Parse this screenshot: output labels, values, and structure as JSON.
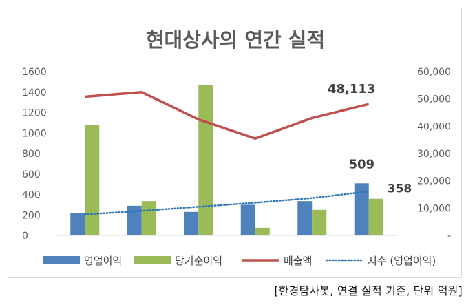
{
  "colors": {
    "operating_profit": "#4f81bd",
    "net_income": "#9bbb59",
    "revenue": "#c0504d",
    "trend": "#2e75b6",
    "title": "#595959",
    "axis_text": "#595959",
    "gridline": "#d9d9d9"
  },
  "chart_data": {
    "type": "bar",
    "title": "현대상사의 연간 실적",
    "categories": [
      "",
      "",
      "",
      "",
      "",
      ""
    ],
    "y_left": {
      "ticks": [
        "0",
        "200",
        "400",
        "600",
        "800",
        "1000",
        "1200",
        "1400",
        "1600"
      ],
      "range": [
        0,
        1600
      ]
    },
    "y_right": {
      "ticks": [
        "-",
        "10,000",
        "20,000",
        "30,000",
        "40,000",
        "50,000",
        "60,000"
      ],
      "range": [
        0,
        60000
      ]
    },
    "series": [
      {
        "name": "영업이익",
        "kind": "bar",
        "axis": "left",
        "values": [
          215,
          290,
          230,
          300,
          335,
          509
        ]
      },
      {
        "name": "당기순이익",
        "kind": "bar",
        "axis": "left",
        "values": [
          1080,
          335,
          1470,
          75,
          250,
          358
        ]
      },
      {
        "name": "매출액",
        "kind": "line",
        "axis": "right",
        "values": [
          50800,
          52500,
          42500,
          35500,
          43000,
          48113
        ]
      },
      {
        "name": "지수 (영업이익)",
        "kind": "dotted-line",
        "axis": "left",
        "values": [
          205,
          240,
          280,
          320,
          365,
          430
        ]
      }
    ],
    "data_labels": [
      {
        "series": "영업이익",
        "index": 5,
        "text": "509"
      },
      {
        "series": "당기순이익",
        "index": 5,
        "text": "358"
      },
      {
        "series": "매출액",
        "index": 5,
        "text": "48,113"
      }
    ],
    "legend_position": "bottom",
    "grid": false
  },
  "source_note": "[한경탐사봇, 연결 실적 기준, 단위 억원]"
}
